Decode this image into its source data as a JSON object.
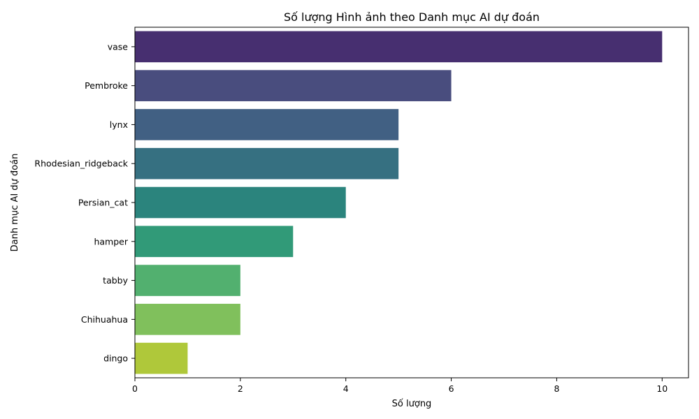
{
  "chart_data": {
    "type": "bar",
    "orientation": "horizontal",
    "title": "Số lượng Hình ảnh theo Danh mục AI dự đoán",
    "xlabel": "Số lượng",
    "ylabel": "Danh mục AI dự đoán",
    "categories": [
      "vase",
      "Pembroke",
      "lynx",
      "Rhodesian_ridgeback",
      "Persian_cat",
      "hamper",
      "tabby",
      "Chihuahua",
      "dingo"
    ],
    "values": [
      10,
      6,
      5,
      5,
      4,
      3,
      2,
      2,
      1
    ],
    "colors": [
      "#472f70",
      "#494d7e",
      "#416083",
      "#367081",
      "#2b847d",
      "#319a78",
      "#52b06f",
      "#80c05c",
      "#afc83a"
    ],
    "xlim": [
      0,
      10.5
    ],
    "xticks": [
      0,
      2,
      4,
      6,
      8,
      10
    ],
    "grid": false,
    "legend": "none"
  }
}
